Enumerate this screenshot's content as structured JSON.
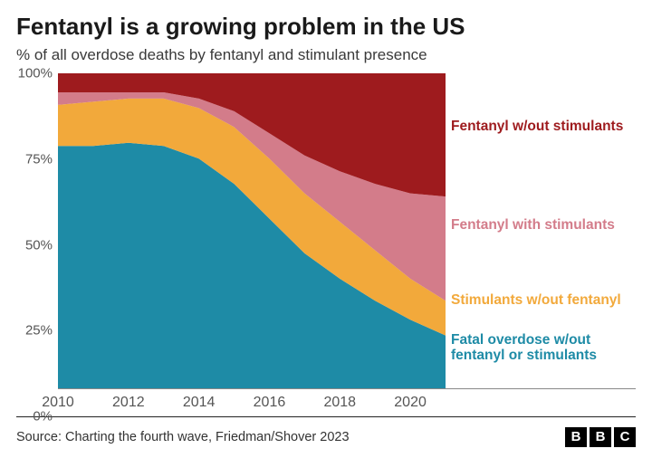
{
  "title": "Fentanyl is a growing problem in the US",
  "subtitle": "% of all overdose deaths by fentanyl and stimulant presence",
  "source": "Source: Charting the fourth wave, Friedman/Shover 2023",
  "logo": [
    "B",
    "B",
    "C"
  ],
  "chart": {
    "type": "stacked-area",
    "background_color": "#ffffff",
    "grid_color": "#d9d9d9",
    "axis_text_color": "#555555",
    "ylim": [
      0,
      100
    ],
    "ytick_step": 25,
    "yticks": [
      {
        "v": 0,
        "label": "0%"
      },
      {
        "v": 25,
        "label": "25%"
      },
      {
        "v": 50,
        "label": "50%"
      },
      {
        "v": 75,
        "label": "75%"
      },
      {
        "v": 100,
        "label": "100%"
      }
    ],
    "years": [
      2010,
      2011,
      2012,
      2013,
      2014,
      2015,
      2016,
      2017,
      2018,
      2019,
      2020,
      2021
    ],
    "xticks": [
      2010,
      2012,
      2014,
      2016,
      2018,
      2020
    ],
    "series": [
      {
        "key": "no_fentanyl_no_stim",
        "label": "Fatal overdose w/out fentanyl or stimulants",
        "color": "#1e8ba6",
        "values": [
          77,
          77,
          78,
          77,
          73,
          65,
          54,
          43,
          35,
          28,
          22,
          17
        ],
        "legend_y_pct": 87
      },
      {
        "key": "stimulants_only",
        "label": "Stimulants w/out fentanyl",
        "color": "#f2a93b",
        "values": [
          13,
          14,
          14,
          15,
          16,
          18,
          19,
          19,
          18,
          16,
          13,
          11
        ],
        "legend_y_pct": 72
      },
      {
        "key": "fentanyl_with_stim",
        "label": "Fentanyl with stimulants",
        "color": "#d37c8a",
        "values": [
          4,
          3,
          2,
          2,
          3,
          5,
          8,
          12,
          16,
          21,
          27,
          33
        ],
        "legend_y_pct": 48
      },
      {
        "key": "fentanyl_only",
        "label": "Fentanyl w/out stimulants",
        "color": "#9e1b1e",
        "values": [
          6,
          6,
          6,
          6,
          8,
          12,
          19,
          26,
          31,
          35,
          38,
          39
        ],
        "legend_y_pct": 17
      }
    ],
    "title_fontsize": 26,
    "subtitle_fontsize": 17,
    "legend_fontsize": 15.5,
    "axis_fontsize": 15
  }
}
